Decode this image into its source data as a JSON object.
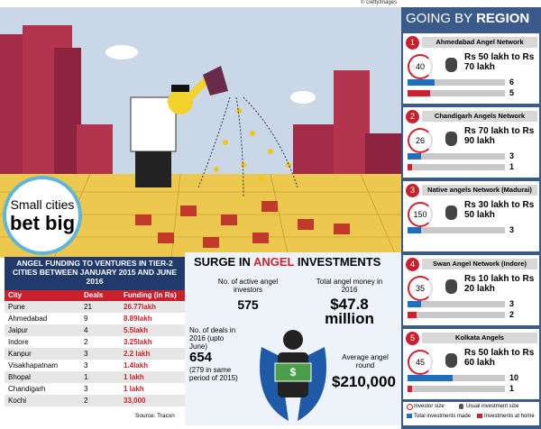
{
  "credit": "© GettyImages",
  "badge": {
    "line1": "Small cities",
    "line2": "bet big"
  },
  "table": {
    "title": "ANGEL FUNDING TO VENTURES IN TIER-2 CITIES BETWEEN JANUARY 2015 AND JUNE 2016",
    "header": [
      "City",
      "Deals",
      "Funding (in Rs)"
    ],
    "rows": [
      [
        "Pune",
        "21",
        "26.77lakh"
      ],
      [
        "Ahmedabad",
        "9",
        "8.89lakh"
      ],
      [
        "Jaipur",
        "4",
        "5.5lakh"
      ],
      [
        "Indore",
        "2",
        "3.25lakh"
      ],
      [
        "Kanpur",
        "3",
        "2.2 lakh"
      ],
      [
        "Visakhapatnam",
        "3",
        "1.4lakh"
      ],
      [
        "Bhopal",
        "1",
        "1 lakh"
      ],
      [
        "Chandigarh",
        "3",
        "1 lakh"
      ],
      [
        "Kochi",
        "2",
        "33,000"
      ]
    ],
    "source": "Source: Tracxn"
  },
  "surge": {
    "title": [
      "SURGE IN ",
      "ANGEL",
      " INVESTMENTS"
    ],
    "investors": {
      "label": "No. of active angel investors",
      "value": "575"
    },
    "money": {
      "label": "Total angel money in 2016",
      "value": "$47.8 million"
    },
    "deals": {
      "label": "No. of deals in 2016 (upto June)",
      "value": "654",
      "note": "(279 in same period of 2015)"
    },
    "round": {
      "label": "Average angel round",
      "value": "$210,000"
    }
  },
  "region": {
    "title": [
      "GOING BY ",
      "REGION"
    ],
    "networks": [
      {
        "number": "1",
        "name": "Ahmedabad Angel Network",
        "investor_size": "40",
        "investment_size": "Rs 50 lakh to Rs 70 lakh",
        "total": 6,
        "home": 5
      },
      {
        "number": "2",
        "name": "Chandigarh Angels Network",
        "investor_size": "26",
        "investment_size": "Rs 70 lakh to Rs 90 lakh",
        "total": 3,
        "home": 1
      },
      {
        "number": "3",
        "name": "Native angels Network (Madurai)",
        "investor_size": "150",
        "investment_size": "Rs 30 lakh to Rs 50 lakh",
        "total": 3
      },
      {
        "number": "4",
        "name": "Swan Angel Network (Indore)",
        "investor_size": "35",
        "investment_size": "Rs 10 lakh to Rs 20 lakh",
        "total": 3,
        "home": 2
      },
      {
        "number": "5",
        "name": "Kolkata Angels",
        "investor_size": "45",
        "investment_size": "Rs 50 lakh to Rs 60 lakh",
        "total": 10,
        "home": 1
      }
    ],
    "legend": {
      "investor_size": "Investor size",
      "usual_investment": "Usual investment size",
      "total": "Total investments made",
      "home": "Investments at home"
    }
  }
}
